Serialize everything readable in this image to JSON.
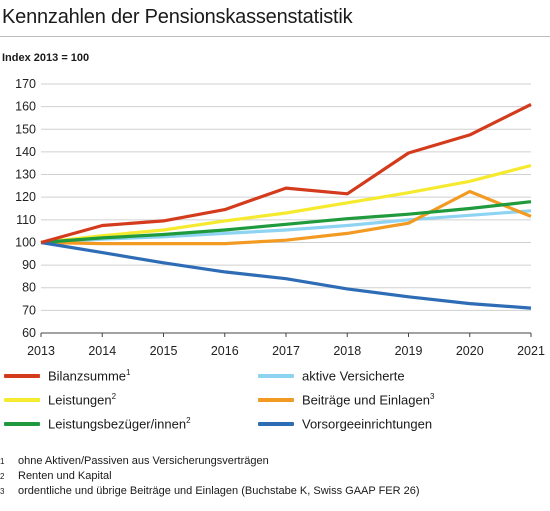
{
  "header": {
    "title": "Kennzahlen der Pensionskassenstatistik",
    "unit_label": "Index 2013 = 100"
  },
  "chart_data": {
    "type": "line",
    "title": "Kennzahlen der Pensionskassenstatistik",
    "ylabel": "Index 2013 = 100",
    "xlabel": "",
    "x": [
      2013,
      2014,
      2015,
      2016,
      2017,
      2018,
      2019,
      2020,
      2021
    ],
    "xticks": [
      "2013",
      "2014",
      "2015",
      "2016",
      "2017",
      "2018",
      "2019",
      "2020",
      "2021"
    ],
    "ylim": [
      60,
      170
    ],
    "yticks": [
      60,
      70,
      80,
      90,
      100,
      110,
      120,
      130,
      140,
      150,
      160,
      170
    ],
    "grid": "horizontal",
    "legend_position": "bottom",
    "series": [
      {
        "name": "Bilanzsumme",
        "sup": "1",
        "color": "#d33b1c",
        "values": [
          100,
          107.5,
          109.5,
          114.5,
          124,
          121.5,
          139.5,
          147.5,
          161
        ]
      },
      {
        "name": "Leistungen",
        "sup": "2",
        "color": "#f5ea2e",
        "values": [
          100,
          103,
          105.5,
          109.5,
          113,
          117.5,
          122,
          127,
          134
        ]
      },
      {
        "name": "Leistungsbezüger/innen",
        "sup": "2",
        "color": "#1f9a3c",
        "values": [
          100,
          102,
          103.5,
          105.5,
          108,
          110.5,
          112.5,
          115,
          118
        ]
      },
      {
        "name": "aktive Versicherte",
        "sup": "",
        "color": "#8fd3f2",
        "values": [
          100,
          101.5,
          102.5,
          104,
          105.5,
          107.5,
          110,
          112,
          114
        ]
      },
      {
        "name": "Beiträge und Einlagen",
        "sup": "3",
        "color": "#f29a22",
        "values": [
          100,
          99.5,
          99.5,
          99.5,
          101,
          104,
          108.5,
          122.5,
          111.5
        ]
      },
      {
        "name": "Vorsorgeeinrichtungen",
        "sup": "",
        "color": "#2e6db5",
        "values": [
          100,
          95.5,
          91,
          87,
          84,
          79.5,
          76,
          73,
          71
        ]
      }
    ]
  },
  "legend": [
    {
      "label": "Bilanzsumme",
      "sup": "1",
      "color": "#d33b1c"
    },
    {
      "label": "aktive Versicherte",
      "sup": "",
      "color": "#8fd3f2"
    },
    {
      "label": "Leistungen",
      "sup": "2",
      "color": "#f5ea2e"
    },
    {
      "label": "Beiträge und Einlagen",
      "sup": "3",
      "color": "#f29a22"
    },
    {
      "label": "Leistungsbezüger/innen",
      "sup": "2",
      "color": "#1f9a3c"
    },
    {
      "label": "Vorsorgeeinrichtungen",
      "sup": "",
      "color": "#2e6db5"
    }
  ],
  "footnotes": [
    {
      "mark": "1",
      "text": "ohne Aktiven/Passiven aus Versicherungsverträgen"
    },
    {
      "mark": "2",
      "text": "Renten und Kapital"
    },
    {
      "mark": "3",
      "text": "ordentliche und übrige Beiträge und Einlagen (Buchstabe K, Swiss GAAP FER 26)"
    }
  ]
}
